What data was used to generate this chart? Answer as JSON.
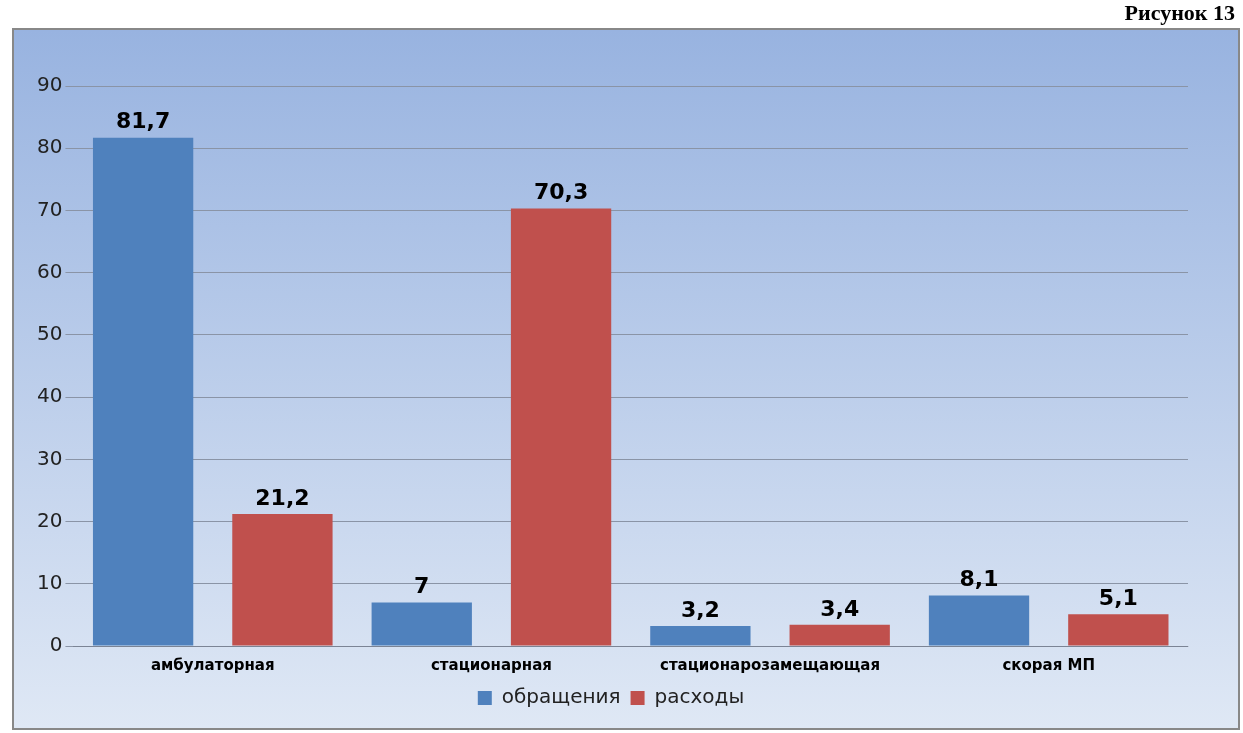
{
  "chart_data": {
    "type": "bar",
    "categories": [
      "амбулаторная",
      "стационарная",
      "стационарозамещающая",
      "скорая МП"
    ],
    "series": [
      {
        "name": "обращения",
        "color": "#4f81bd",
        "values": [
          81.7,
          7,
          3.2,
          8.1
        ],
        "value_labels": [
          "81,7",
          "7",
          "3,2",
          "8,1"
        ]
      },
      {
        "name": "расходы",
        "color": "#c0504d",
        "values": [
          21.2,
          70.3,
          3.4,
          5.1
        ],
        "value_labels": [
          "21,2",
          "70,3",
          "3,4",
          "5,1"
        ]
      }
    ],
    "ylim": [
      0,
      90
    ],
    "yticks": [
      0,
      10,
      20,
      30,
      40,
      50,
      60,
      70,
      80,
      90
    ],
    "grid": "y",
    "legend": "bottom",
    "annotations": [
      "Рисунок 13"
    ]
  }
}
